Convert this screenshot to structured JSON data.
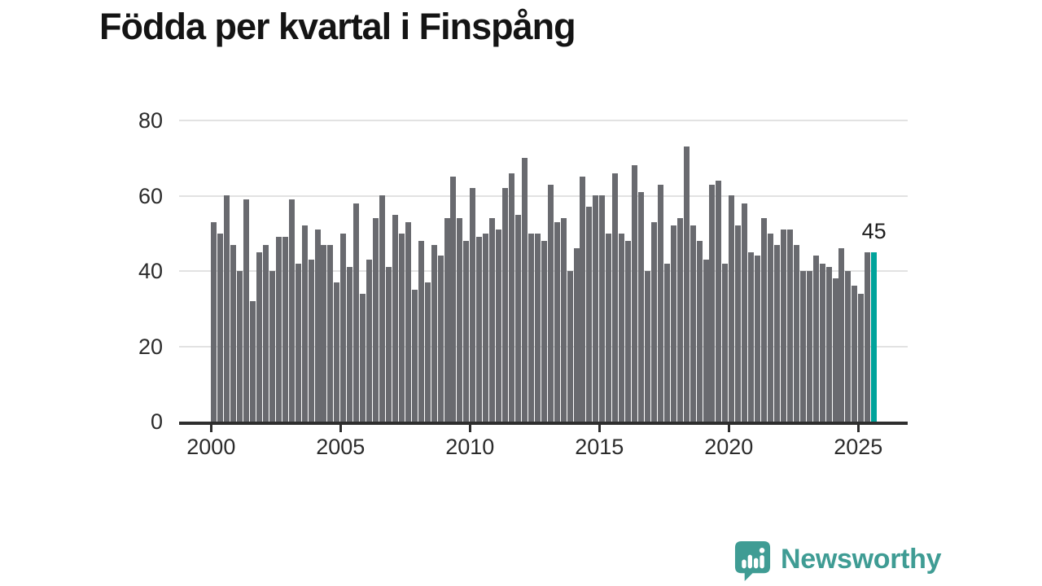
{
  "chart": {
    "title": "Födda per kvartal i Finspång",
    "highlight_label": "45"
  },
  "chart_data": {
    "type": "bar",
    "title": "Födda per kvartal i Finspång",
    "x_unit": "quarter",
    "categories": [
      "2000Q1",
      "2000Q2",
      "2000Q3",
      "2000Q4",
      "2001Q1",
      "2001Q2",
      "2001Q3",
      "2001Q4",
      "2002Q1",
      "2002Q2",
      "2002Q3",
      "2002Q4",
      "2003Q1",
      "2003Q2",
      "2003Q3",
      "2003Q4",
      "2004Q1",
      "2004Q2",
      "2004Q3",
      "2004Q4",
      "2005Q1",
      "2005Q2",
      "2005Q3",
      "2005Q4",
      "2006Q1",
      "2006Q2",
      "2006Q3",
      "2006Q4",
      "2007Q1",
      "2007Q2",
      "2007Q3",
      "2007Q4",
      "2008Q1",
      "2008Q2",
      "2008Q3",
      "2008Q4",
      "2009Q1",
      "2009Q2",
      "2009Q3",
      "2009Q4",
      "2010Q1",
      "2010Q2",
      "2010Q3",
      "2010Q4",
      "2011Q1",
      "2011Q2",
      "2011Q3",
      "2011Q4",
      "2012Q1",
      "2012Q2",
      "2012Q3",
      "2012Q4",
      "2013Q1",
      "2013Q2",
      "2013Q3",
      "2013Q4",
      "2014Q1",
      "2014Q2",
      "2014Q3",
      "2014Q4",
      "2015Q1",
      "2015Q2",
      "2015Q3",
      "2015Q4",
      "2016Q1",
      "2016Q2",
      "2016Q3",
      "2016Q4",
      "2017Q1",
      "2017Q2",
      "2017Q3",
      "2017Q4",
      "2018Q1",
      "2018Q2",
      "2018Q3",
      "2018Q4",
      "2019Q1",
      "2019Q2",
      "2019Q3",
      "2019Q4",
      "2020Q1",
      "2020Q2",
      "2020Q3",
      "2020Q4",
      "2021Q1",
      "2021Q2",
      "2021Q3",
      "2021Q4",
      "2022Q1",
      "2022Q2",
      "2022Q3",
      "2022Q4",
      "2023Q1",
      "2023Q2",
      "2023Q3",
      "2023Q4",
      "2024Q1",
      "2024Q2",
      "2024Q3",
      "2024Q4",
      "2025Q1",
      "2025Q2",
      "2025Q3"
    ],
    "values": [
      53,
      50,
      60,
      47,
      40,
      59,
      32,
      45,
      47,
      40,
      49,
      49,
      59,
      42,
      52,
      43,
      51,
      47,
      47,
      37,
      50,
      41,
      58,
      34,
      43,
      54,
      60,
      41,
      55,
      50,
      53,
      35,
      48,
      37,
      47,
      44,
      54,
      65,
      54,
      48,
      62,
      49,
      50,
      54,
      51,
      62,
      66,
      55,
      70,
      50,
      50,
      48,
      63,
      53,
      54,
      40,
      46,
      65,
      57,
      60,
      60,
      50,
      66,
      50,
      48,
      68,
      61,
      40,
      53,
      63,
      42,
      52,
      54,
      73,
      52,
      48,
      43,
      63,
      64,
      42,
      60,
      52,
      58,
      45,
      44,
      54,
      50,
      47,
      51,
      51,
      47,
      40,
      40,
      44,
      42,
      41,
      38,
      46,
      40,
      36,
      34,
      45,
      45
    ],
    "highlight": {
      "category": "2025Q3",
      "value": 45,
      "label": "45"
    },
    "ylim": [
      0,
      80
    ],
    "yticks": [
      0,
      20,
      40,
      60,
      80
    ],
    "xticks": [
      "2000",
      "2005",
      "2010",
      "2015",
      "2020",
      "2025"
    ],
    "grid": "horizontal",
    "xlabel": "",
    "ylabel": ""
  },
  "footer": {
    "logo_text": "Newsworthy"
  },
  "colors": {
    "bar_gray": "#696a6f",
    "accent_teal": "#00a39b",
    "logo_teal": "#3f9c94",
    "gridline": "#e2e2e2",
    "axis": "#2e2e2e"
  }
}
